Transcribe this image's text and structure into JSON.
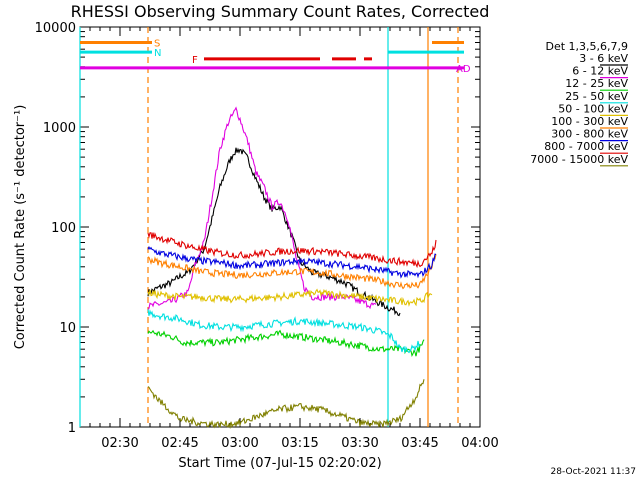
{
  "chart_data": {
    "type": "line",
    "title": "RHESSI Observing Summary Count Rates, Corrected",
    "xlabel": "Start Time (07-Jul-15 02:20:02)",
    "ylabel": "Corrected Count Rate (s⁻¹ detector⁻¹)",
    "yscale": "log",
    "ylim": [
      1,
      10000
    ],
    "xlim_minutes": [
      0,
      100
    ],
    "x_ticks": [
      {
        "m": 10,
        "label": "02:30"
      },
      {
        "m": 25,
        "label": "02:45"
      },
      {
        "m": 40,
        "label": "03:00"
      },
      {
        "m": 55,
        "label": "03:15"
      },
      {
        "m": 70,
        "label": "03:30"
      },
      {
        "m": 85,
        "label": "03:45"
      },
      {
        "m": 100,
        "label": "04:00"
      }
    ],
    "y_ticks": [
      {
        "v": 1,
        "label": "1"
      },
      {
        "v": 10,
        "label": "10"
      },
      {
        "v": 100,
        "label": "100"
      },
      {
        "v": 1000,
        "label": "1000"
      },
      {
        "v": 10000,
        "label": "10000"
      }
    ],
    "legend_title": "Det 1,3,5,6,7,9",
    "legend_position": "right",
    "series": [
      {
        "name": "3 - 6 keV",
        "color": "#000000",
        "points": [
          [
            17,
            22
          ],
          [
            20,
            25
          ],
          [
            23,
            28
          ],
          [
            25,
            32
          ],
          [
            27,
            35
          ],
          [
            29,
            45
          ],
          [
            31,
            60
          ],
          [
            33,
            120
          ],
          [
            35,
            250
          ],
          [
            37,
            420
          ],
          [
            38.5,
            560
          ],
          [
            40,
            600
          ],
          [
            42,
            480
          ],
          [
            44,
            300
          ],
          [
            46,
            200
          ],
          [
            48,
            150
          ],
          [
            50,
            160
          ],
          [
            51,
            130
          ],
          [
            53,
            80
          ],
          [
            55,
            45
          ],
          [
            58,
            35
          ],
          [
            62,
            32
          ],
          [
            66,
            28
          ],
          [
            70,
            22
          ],
          [
            74,
            18
          ],
          [
            78,
            15
          ],
          [
            80,
            14
          ]
        ]
      },
      {
        "name": "6 - 12 keV",
        "color": "#e000e0",
        "points": [
          [
            17,
            16
          ],
          [
            20,
            17
          ],
          [
            23,
            18
          ],
          [
            25,
            20
          ],
          [
            27,
            22
          ],
          [
            29,
            45
          ],
          [
            31,
            70
          ],
          [
            33,
            200
          ],
          [
            35,
            600
          ],
          [
            37,
            1100
          ],
          [
            39,
            1500
          ],
          [
            40,
            1200
          ],
          [
            42,
            700
          ],
          [
            44,
            350
          ],
          [
            46,
            250
          ],
          [
            48,
            160
          ],
          [
            50,
            180
          ],
          [
            52,
            120
          ],
          [
            54,
            50
          ],
          [
            56,
            25
          ],
          [
            58,
            20
          ],
          [
            62,
            20
          ],
          [
            66,
            20
          ],
          [
            70,
            18
          ],
          [
            74,
            16
          ]
        ]
      },
      {
        "name": "12 - 25 keV",
        "color": "#00d000",
        "points": [
          [
            17,
            9
          ],
          [
            20,
            8.5
          ],
          [
            23,
            8
          ],
          [
            26,
            7
          ],
          [
            30,
            7
          ],
          [
            35,
            7
          ],
          [
            40,
            7.5
          ],
          [
            45,
            8
          ],
          [
            50,
            8.5
          ],
          [
            55,
            8
          ],
          [
            60,
            7.5
          ],
          [
            65,
            7
          ],
          [
            70,
            6.5
          ],
          [
            75,
            6
          ],
          [
            80,
            6
          ],
          [
            84,
            5.5
          ],
          [
            86,
            7
          ]
        ]
      },
      {
        "name": "25 - 50 keV",
        "color": "#00e0e0",
        "points": [
          [
            17,
            14
          ],
          [
            20,
            13
          ],
          [
            25,
            12
          ],
          [
            30,
            10.5
          ],
          [
            35,
            10
          ],
          [
            40,
            10
          ],
          [
            45,
            10.5
          ],
          [
            50,
            11
          ],
          [
            55,
            11.5
          ],
          [
            60,
            11
          ],
          [
            65,
            10.5
          ],
          [
            70,
            10
          ],
          [
            75,
            9
          ],
          [
            78,
            8
          ],
          [
            80,
            6
          ],
          [
            83,
            6
          ],
          [
            85,
            7
          ]
        ]
      },
      {
        "name": "50 - 100 keV",
        "color": "#e0c000",
        "points": [
          [
            17,
            22
          ],
          [
            20,
            21
          ],
          [
            25,
            20
          ],
          [
            30,
            20
          ],
          [
            35,
            19
          ],
          [
            40,
            19
          ],
          [
            45,
            19.5
          ],
          [
            50,
            20
          ],
          [
            55,
            21
          ],
          [
            60,
            22
          ],
          [
            65,
            21
          ],
          [
            70,
            20
          ],
          [
            75,
            19
          ],
          [
            80,
            18
          ],
          [
            85,
            18
          ],
          [
            88,
            22
          ]
        ]
      },
      {
        "name": "100 - 300 keV",
        "color": "#ff8000",
        "points": [
          [
            17,
            48
          ],
          [
            20,
            44
          ],
          [
            25,
            40
          ],
          [
            30,
            36
          ],
          [
            35,
            34
          ],
          [
            40,
            33
          ],
          [
            45,
            34
          ],
          [
            50,
            35
          ],
          [
            55,
            36
          ],
          [
            60,
            35
          ],
          [
            65,
            33
          ],
          [
            70,
            31
          ],
          [
            75,
            29
          ],
          [
            80,
            26
          ],
          [
            85,
            26
          ],
          [
            88,
            40
          ],
          [
            89,
            55
          ]
        ]
      },
      {
        "name": "300 - 800 keV",
        "color": "#0000e0",
        "points": [
          [
            17,
            60
          ],
          [
            20,
            55
          ],
          [
            25,
            50
          ],
          [
            30,
            46
          ],
          [
            35,
            44
          ],
          [
            40,
            41
          ],
          [
            45,
            42
          ],
          [
            50,
            44
          ],
          [
            55,
            46
          ],
          [
            60,
            44
          ],
          [
            65,
            42
          ],
          [
            70,
            40
          ],
          [
            75,
            37
          ],
          [
            80,
            34
          ],
          [
            85,
            33
          ],
          [
            88,
            42
          ],
          [
            89,
            55
          ]
        ]
      },
      {
        "name": "800 - 7000 keV",
        "color": "#e00000",
        "points": [
          [
            17,
            85
          ],
          [
            20,
            78
          ],
          [
            25,
            68
          ],
          [
            30,
            60
          ],
          [
            35,
            55
          ],
          [
            40,
            52
          ],
          [
            45,
            54
          ],
          [
            50,
            57
          ],
          [
            55,
            58
          ],
          [
            60,
            57
          ],
          [
            65,
            54
          ],
          [
            70,
            51
          ],
          [
            75,
            48
          ],
          [
            80,
            45
          ],
          [
            85,
            43
          ],
          [
            88,
            55
          ],
          [
            89,
            70
          ]
        ]
      },
      {
        "name": "7000 - 15000 keV",
        "color": "#808000",
        "points": [
          [
            17,
            2.5
          ],
          [
            20,
            1.8
          ],
          [
            25,
            1.2
          ],
          [
            30,
            1.1
          ],
          [
            35,
            1.05
          ],
          [
            40,
            1.1
          ],
          [
            45,
            1.3
          ],
          [
            50,
            1.5
          ],
          [
            55,
            1.6
          ],
          [
            60,
            1.5
          ],
          [
            65,
            1.3
          ],
          [
            70,
            1.1
          ],
          [
            75,
            1.05
          ],
          [
            80,
            1.2
          ],
          [
            84,
            2
          ],
          [
            86,
            3
          ]
        ]
      }
    ],
    "state_bars": [
      {
        "label": "S",
        "color": "#ff8000",
        "segments": [
          [
            0,
            18
          ],
          [
            88,
            96
          ]
        ],
        "v": 7000
      },
      {
        "label": "N",
        "color": "#00e0e0",
        "segments": [
          [
            0,
            18
          ],
          [
            77,
            96
          ]
        ],
        "v": 5600
      },
      {
        "label": "F",
        "color": "#e00000",
        "segments": [
          [
            31,
            60
          ],
          [
            63,
            69
          ],
          [
            71,
            73
          ]
        ],
        "v": 4800
      },
      {
        "label": "AD",
        "color": "#e000e0",
        "segments": [
          [
            0,
            96
          ]
        ],
        "v": 3900
      }
    ],
    "vlines": [
      {
        "m": 0,
        "color": "#00e0e0",
        "dashed": false
      },
      {
        "m": 17,
        "color": "#ff8000",
        "dashed": true
      },
      {
        "m": 77,
        "color": "#00e0e0",
        "dashed": false
      },
      {
        "m": 87,
        "color": "#ff8000",
        "dashed": false
      },
      {
        "m": 94.5,
        "color": "#ff8000",
        "dashed": true
      }
    ]
  },
  "timestamp": "28-Oct-2021 11:37"
}
